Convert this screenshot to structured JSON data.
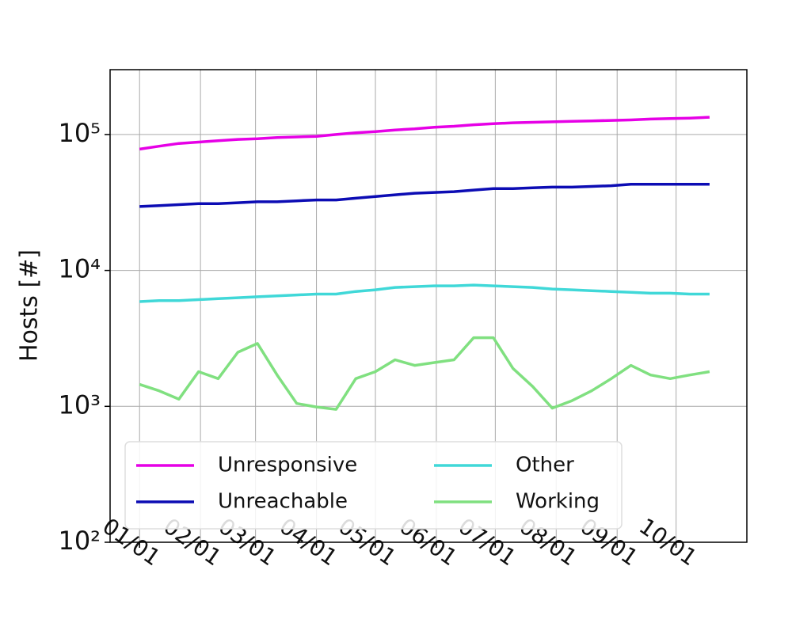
{
  "chart_data": {
    "type": "line",
    "y_label": "Hosts [#]",
    "log_y": true,
    "grid": true,
    "legend": "lower left",
    "x": [
      0,
      10,
      20,
      30,
      40,
      50,
      60,
      70,
      80,
      90,
      100,
      110,
      120,
      130,
      140,
      150,
      160,
      170,
      180,
      190,
      200,
      210,
      220,
      230,
      240,
      250,
      260,
      270,
      280,
      290
    ],
    "xlim": [
      -15,
      309
    ],
    "xticks": [
      {
        "value": 0,
        "label": "01/01"
      },
      {
        "value": 31,
        "label": "02/01"
      },
      {
        "value": 59,
        "label": "03/01"
      },
      {
        "value": 90,
        "label": "04/01"
      },
      {
        "value": 120,
        "label": "05/01"
      },
      {
        "value": 151,
        "label": "06/01"
      },
      {
        "value": 181,
        "label": "07/01"
      },
      {
        "value": 212,
        "label": "08/01"
      },
      {
        "value": 243,
        "label": "09/01"
      },
      {
        "value": 273,
        "label": "10/01"
      }
    ],
    "ylim": [
      100,
      300000
    ],
    "yticks": [
      {
        "value": 100,
        "label": "10²"
      },
      {
        "value": 1000,
        "label": "10³"
      },
      {
        "value": 10000,
        "label": "10⁴"
      },
      {
        "value": 100000,
        "label": "10⁵"
      }
    ],
    "series": [
      {
        "name": "Unresponsive",
        "color": "#e600e6",
        "values": [
          78000,
          82000,
          86000,
          88000,
          90000,
          92000,
          93000,
          95000,
          96000,
          97000,
          100000,
          103000,
          105000,
          108000,
          110000,
          113000,
          115000,
          118000,
          120000,
          122000,
          123000,
          124000,
          125000,
          126000,
          127000,
          128000,
          130000,
          131000,
          132000,
          134000
        ]
      },
      {
        "name": "Unreachable",
        "color": "#0c0cb4",
        "values": [
          29500,
          30000,
          30500,
          31000,
          31000,
          31500,
          32000,
          32000,
          32500,
          33000,
          33000,
          34000,
          35000,
          36000,
          37000,
          37500,
          38000,
          39000,
          40000,
          40000,
          40500,
          41000,
          41000,
          41500,
          42000,
          43000,
          43000,
          43000,
          43000,
          43000
        ]
      },
      {
        "name": "Other",
        "color": "#40d8d8",
        "values": [
          5900,
          6000,
          6000,
          6100,
          6200,
          6300,
          6400,
          6500,
          6600,
          6700,
          6700,
          7000,
          7200,
          7500,
          7600,
          7700,
          7700,
          7800,
          7700,
          7600,
          7500,
          7300,
          7200,
          7100,
          7000,
          6900,
          6800,
          6800,
          6700,
          6700
        ]
      },
      {
        "name": "Working",
        "color": "#80e080",
        "values": [
          1450,
          1300,
          1130,
          1800,
          1600,
          2500,
          2900,
          1700,
          1050,
          990,
          950,
          1600,
          1800,
          2200,
          2000,
          2100,
          2200,
          3200,
          3200,
          1900,
          1400,
          970,
          1100,
          1300,
          1600,
          2000,
          1700,
          1600,
          1700,
          1800
        ]
      }
    ]
  }
}
